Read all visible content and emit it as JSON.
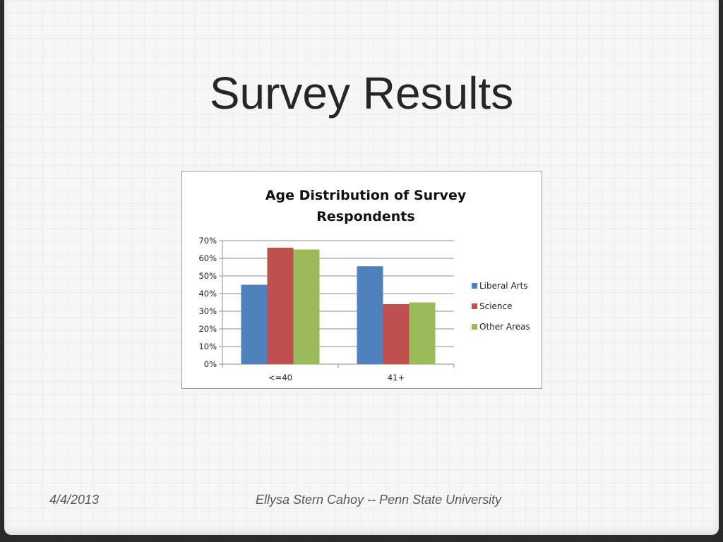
{
  "slide": {
    "title": "Survey Results",
    "footer_date": "4/4/2013",
    "footer_text": "Ellysa Stern Cahoy -- Penn State University"
  },
  "chart_data": {
    "type": "bar",
    "title_lines": [
      "Age Distribution of Survey",
      "Respondents"
    ],
    "categories": [
      "<=40",
      "41+"
    ],
    "series": [
      {
        "name": "Liberal Arts",
        "color": "#4f81bd",
        "values": [
          45,
          55.5
        ]
      },
      {
        "name": "Science",
        "color": "#c0504d",
        "values": [
          66,
          34
        ]
      },
      {
        "name": "Other Areas",
        "color": "#9bbb59",
        "values": [
          65,
          35
        ]
      }
    ],
    "ylim": [
      0,
      70
    ],
    "yticks": [
      "0%",
      "10%",
      "20%",
      "30%",
      "40%",
      "50%",
      "60%",
      "70%"
    ],
    "ytick_values": [
      0,
      10,
      20,
      30,
      40,
      50,
      60,
      70
    ],
    "unit": "%",
    "grid": true,
    "legend_position": "right"
  }
}
